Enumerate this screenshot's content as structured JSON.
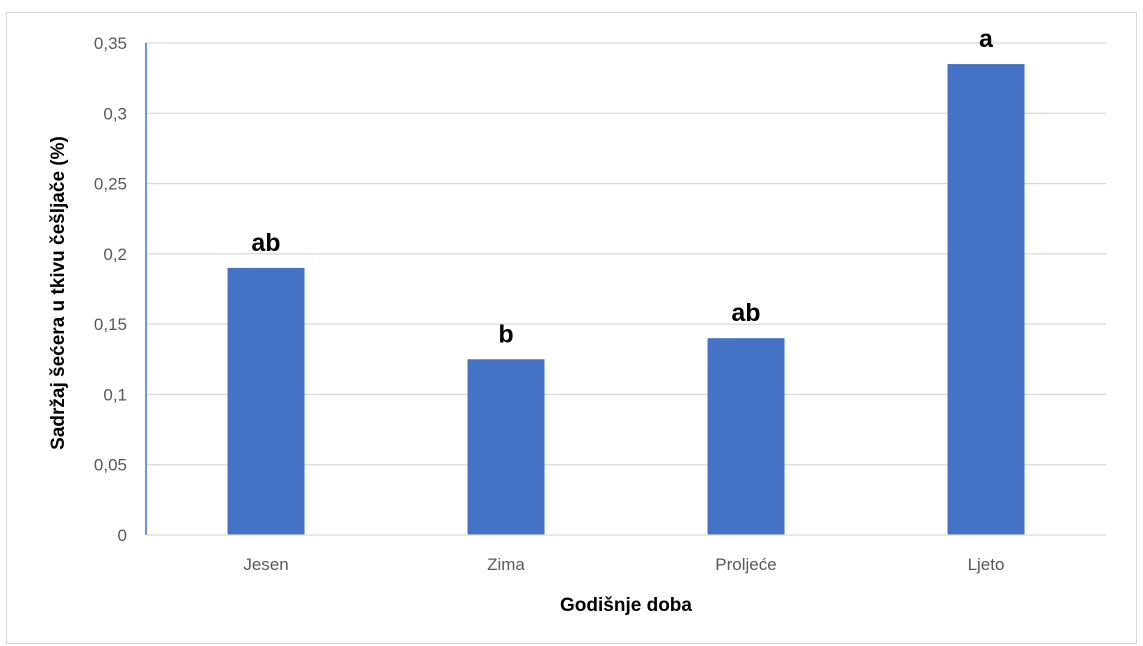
{
  "chart_data": {
    "type": "bar",
    "title": "",
    "xlabel": "Godišnje doba",
    "ylabel": "Sadržaj šećera u tkivu češljače (%)",
    "categories": [
      "Jesen",
      "Zima",
      "Proljeće",
      "Ljeto"
    ],
    "values": [
      0.19,
      0.125,
      0.14,
      0.335
    ],
    "data_labels": [
      "ab",
      "b",
      "ab",
      "a"
    ],
    "ylim": [
      0,
      0.35
    ],
    "yticks": [
      0,
      0.05,
      0.1,
      0.15,
      0.2,
      0.25,
      0.3,
      0.35
    ],
    "ytick_labels": [
      "0",
      "0,05",
      "0,1",
      "0,15",
      "0,2",
      "0,25",
      "0,3",
      "0,35"
    ],
    "grid": true,
    "colors": {
      "bar": "#4472c4",
      "grid": "#d9d9d9",
      "axis": "#4472c4"
    }
  }
}
